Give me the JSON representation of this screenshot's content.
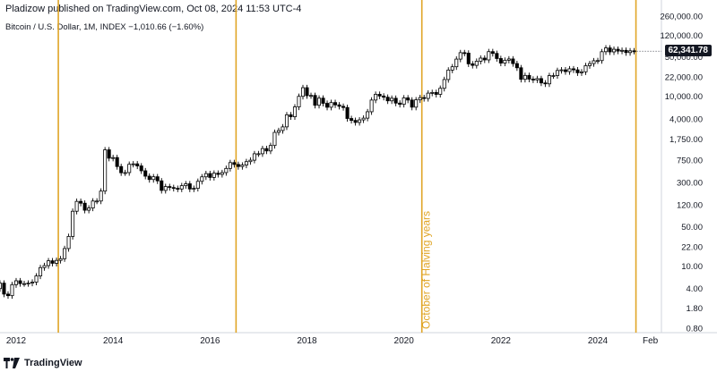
{
  "header": {
    "publisher_line": "Pladizow published on TradingView.com, Oct 08, 2024 11:53 UTC-4"
  },
  "symbol": {
    "name": "Bitcoin / U.S. Dollar, 1M, INDEX",
    "change": "−1,010.66 (−1.60%)"
  },
  "last_price": "62,341.78",
  "footer": {
    "brand": "TradingView",
    "logo": "tradingview-logo-icon"
  },
  "colors": {
    "halving_line": "#e0a526",
    "candle_up": "#ffffff",
    "candle_down": "#000000",
    "price_tag": "#131722"
  },
  "chart_data": {
    "type": "candlestick",
    "y_scale": "log",
    "ylim": [
      0.8,
      260000
    ],
    "y_ticks": [
      "260,000.00",
      "120,000.00",
      "50,000.00",
      "22,000.00",
      "10,000.00",
      "4,000.00",
      "1,750.00",
      "750.00",
      "300.00",
      "120.00",
      "50.00",
      "22.00",
      "10.00",
      "4.00",
      "1.80",
      "0.80"
    ],
    "x_ticks": [
      "2012",
      "2014",
      "2016",
      "2018",
      "2020",
      "2022",
      "2024",
      "Feb"
    ],
    "x_range": [
      "2011-09",
      "2025-03"
    ],
    "vertical_lines": [
      {
        "date": "2012-11",
        "label": ""
      },
      {
        "date": "2016-07",
        "label": ""
      },
      {
        "date": "2020-05",
        "label": "October of Halving years"
      },
      {
        "date": "2024-10",
        "label": ""
      }
    ],
    "monthly_close": [
      [
        "2011-09",
        5.0
      ],
      [
        "2011-10",
        3.2
      ],
      [
        "2011-11",
        3.0
      ],
      [
        "2011-12",
        4.7
      ],
      [
        "2012-01",
        5.5
      ],
      [
        "2012-02",
        4.9
      ],
      [
        "2012-03",
        4.9
      ],
      [
        "2012-04",
        5.0
      ],
      [
        "2012-05",
        5.2
      ],
      [
        "2012-06",
        6.7
      ],
      [
        "2012-07",
        9.4
      ],
      [
        "2012-08",
        10.2
      ],
      [
        "2012-09",
        12.4
      ],
      [
        "2012-10",
        11.2
      ],
      [
        "2012-11",
        12.6
      ],
      [
        "2012-12",
        13.5
      ],
      [
        "2013-01",
        20.4
      ],
      [
        "2013-02",
        33.4
      ],
      [
        "2013-03",
        93
      ],
      [
        "2013-04",
        139
      ],
      [
        "2013-05",
        129
      ],
      [
        "2013-06",
        97
      ],
      [
        "2013-07",
        106
      ],
      [
        "2013-08",
        141
      ],
      [
        "2013-09",
        141
      ],
      [
        "2013-10",
        211
      ],
      [
        "2013-11",
        1130
      ],
      [
        "2013-12",
        805
      ],
      [
        "2014-01",
        825
      ],
      [
        "2014-02",
        573
      ],
      [
        "2014-03",
        445
      ],
      [
        "2014-04",
        448
      ],
      [
        "2014-05",
        628
      ],
      [
        "2014-06",
        639
      ],
      [
        "2014-07",
        587
      ],
      [
        "2014-08",
        482
      ],
      [
        "2014-09",
        387
      ],
      [
        "2014-10",
        338
      ],
      [
        "2014-11",
        378
      ],
      [
        "2014-12",
        320
      ],
      [
        "2015-01",
        217
      ],
      [
        "2015-02",
        254
      ],
      [
        "2015-03",
        244
      ],
      [
        "2015-04",
        236
      ],
      [
        "2015-05",
        230
      ],
      [
        "2015-06",
        263
      ],
      [
        "2015-07",
        284
      ],
      [
        "2015-08",
        230
      ],
      [
        "2015-09",
        236
      ],
      [
        "2015-10",
        314
      ],
      [
        "2015-11",
        377
      ],
      [
        "2015-12",
        430
      ],
      [
        "2016-01",
        368
      ],
      [
        "2016-02",
        437
      ],
      [
        "2016-03",
        416
      ],
      [
        "2016-04",
        448
      ],
      [
        "2016-05",
        531
      ],
      [
        "2016-06",
        673
      ],
      [
        "2016-07",
        624
      ],
      [
        "2016-08",
        573
      ],
      [
        "2016-09",
        608
      ],
      [
        "2016-10",
        700
      ],
      [
        "2016-11",
        742
      ],
      [
        "2016-12",
        964
      ],
      [
        "2017-01",
        965
      ],
      [
        "2017-02",
        1190
      ],
      [
        "2017-03",
        1080
      ],
      [
        "2017-04",
        1350
      ],
      [
        "2017-05",
        2300
      ],
      [
        "2017-06",
        2480
      ],
      [
        "2017-07",
        2875
      ],
      [
        "2017-08",
        4700
      ],
      [
        "2017-09",
        4340
      ],
      [
        "2017-10",
        6470
      ],
      [
        "2017-11",
        9950
      ],
      [
        "2017-12",
        14150
      ],
      [
        "2018-01",
        10220
      ],
      [
        "2018-02",
        10330
      ],
      [
        "2018-03",
        6920
      ],
      [
        "2018-04",
        9240
      ],
      [
        "2018-05",
        7490
      ],
      [
        "2018-06",
        6390
      ],
      [
        "2018-07",
        7730
      ],
      [
        "2018-08",
        7030
      ],
      [
        "2018-09",
        6630
      ],
      [
        "2018-10",
        6320
      ],
      [
        "2018-11",
        4040
      ],
      [
        "2018-12",
        3740
      ],
      [
        "2019-01",
        3440
      ],
      [
        "2019-02",
        3820
      ],
      [
        "2019-03",
        4100
      ],
      [
        "2019-04",
        5320
      ],
      [
        "2019-05",
        8560
      ],
      [
        "2019-06",
        10820
      ],
      [
        "2019-07",
        10080
      ],
      [
        "2019-08",
        9600
      ],
      [
        "2019-09",
        8290
      ],
      [
        "2019-10",
        9200
      ],
      [
        "2019-11",
        7560
      ],
      [
        "2019-12",
        7190
      ],
      [
        "2020-01",
        9350
      ],
      [
        "2020-02",
        8560
      ],
      [
        "2020-03",
        6410
      ],
      [
        "2020-04",
        8630
      ],
      [
        "2020-05",
        9450
      ],
      [
        "2020-06",
        9140
      ],
      [
        "2020-07",
        11350
      ],
      [
        "2020-08",
        11650
      ],
      [
        "2020-09",
        10780
      ],
      [
        "2020-10",
        13800
      ],
      [
        "2020-11",
        19700
      ],
      [
        "2020-12",
        28990
      ],
      [
        "2021-01",
        33110
      ],
      [
        "2021-02",
        45240
      ],
      [
        "2021-03",
        58800
      ],
      [
        "2021-04",
        57700
      ],
      [
        "2021-05",
        37300
      ],
      [
        "2021-06",
        35040
      ],
      [
        "2021-07",
        41460
      ],
      [
        "2021-08",
        47100
      ],
      [
        "2021-09",
        43790
      ],
      [
        "2021-10",
        61300
      ],
      [
        "2021-11",
        57000
      ],
      [
        "2021-12",
        46300
      ],
      [
        "2022-01",
        38500
      ],
      [
        "2022-02",
        43200
      ],
      [
        "2022-03",
        45500
      ],
      [
        "2022-04",
        37700
      ],
      [
        "2022-05",
        31800
      ],
      [
        "2022-06",
        19900
      ],
      [
        "2022-07",
        23300
      ],
      [
        "2022-08",
        20050
      ],
      [
        "2022-09",
        19430
      ],
      [
        "2022-10",
        20500
      ],
      [
        "2022-11",
        17170
      ],
      [
        "2022-12",
        16540
      ],
      [
        "2023-01",
        23130
      ],
      [
        "2023-02",
        23140
      ],
      [
        "2023-03",
        28480
      ],
      [
        "2023-04",
        29230
      ],
      [
        "2023-05",
        27220
      ],
      [
        "2023-06",
        30480
      ],
      [
        "2023-07",
        29230
      ],
      [
        "2023-08",
        25940
      ],
      [
        "2023-09",
        26970
      ],
      [
        "2023-10",
        34660
      ],
      [
        "2023-11",
        37720
      ],
      [
        "2023-12",
        42280
      ],
      [
        "2024-01",
        42580
      ],
      [
        "2024-02",
        61130
      ],
      [
        "2024-03",
        71330
      ],
      [
        "2024-04",
        60670
      ],
      [
        "2024-05",
        67530
      ],
      [
        "2024-06",
        62680
      ],
      [
        "2024-07",
        64620
      ],
      [
        "2024-08",
        58970
      ],
      [
        "2024-09",
        63330
      ],
      [
        "2024-10",
        62341.78
      ]
    ]
  }
}
